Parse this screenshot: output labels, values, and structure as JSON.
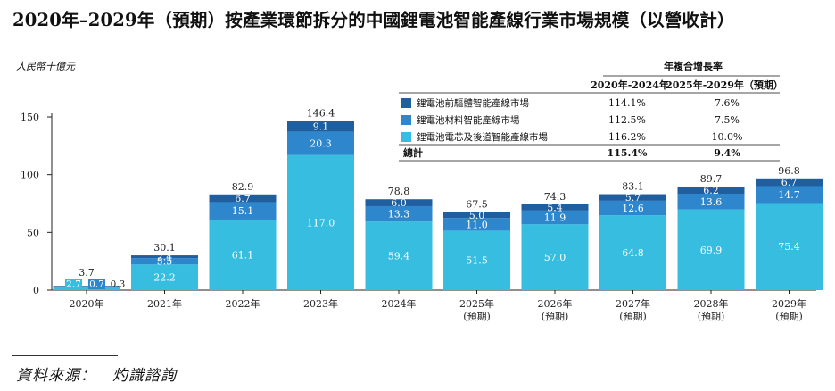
{
  "title": "2020年–2029年（預期）按產業環節拆分的中國鋰電池智能產線行業市場規模（以營收計）",
  "unit_label": "人民幣十億元",
  "source_label": "資料來源：　灼識諮詢",
  "colors": {
    "top": "#1f5fa0",
    "mid": "#2e86cc",
    "bottom": "#36bde0"
  },
  "chart_data": {
    "type": "bar",
    "stacked": true,
    "categories": [
      "2020年",
      "2021年",
      "2022年",
      "2023年",
      "2024年",
      "2025年",
      "2026年",
      "2027年",
      "2028年",
      "2029年"
    ],
    "category_sublabels": [
      "",
      "",
      "",
      "",
      "",
      "(預期)",
      "(預期)",
      "(預期)",
      "(預期)",
      "(預期)"
    ],
    "series": [
      {
        "name": "鋰電池電芯及後道智能產線市場",
        "color": "#36bde0",
        "values": [
          2.7,
          22.2,
          61.1,
          117.0,
          59.4,
          51.5,
          57.0,
          64.8,
          69.9,
          75.4
        ]
      },
      {
        "name": "鋰電池材料智能產線市場",
        "color": "#2e86cc",
        "values": [
          0.7,
          5.5,
          15.1,
          20.3,
          13.3,
          11.0,
          11.9,
          12.6,
          13.6,
          14.7
        ]
      },
      {
        "name": "鋰電池前驅體智能產線市場",
        "color": "#1f5fa0",
        "values": [
          0.3,
          2.4,
          6.7,
          9.1,
          6.0,
          5.0,
          5.4,
          5.7,
          6.2,
          6.7
        ]
      }
    ],
    "totals": [
      3.7,
      30.1,
      82.9,
      146.4,
      78.8,
      67.5,
      74.3,
      83.1,
      89.7,
      96.8
    ],
    "ylim": [
      0,
      150
    ],
    "yticks": [
      0,
      50,
      100,
      150
    ],
    "xlabel": "",
    "ylabel": "人民幣十億元",
    "legend": {
      "placement": "top-right",
      "header_title": "年複合增長率",
      "header_col1": "2020年-2024年",
      "header_col2": "2025年-2029年（預期）",
      "rows": [
        {
          "name": "鋰電池前驅體智能產線市場",
          "color": "#1f5fa0",
          "cagr1": "114.1%",
          "cagr2": "7.6%"
        },
        {
          "name": "鋰電池材料智能產線市場",
          "color": "#2e86cc",
          "cagr1": "112.5%",
          "cagr2": "7.5%"
        },
        {
          "name": "鋰電池電芯及後道智能產線市場",
          "color": "#36bde0",
          "cagr1": "116.2%",
          "cagr2": "10.0%"
        }
      ],
      "total_row": {
        "name": "總計",
        "cagr1": "115.4%",
        "cagr2": "9.4%"
      }
    }
  }
}
